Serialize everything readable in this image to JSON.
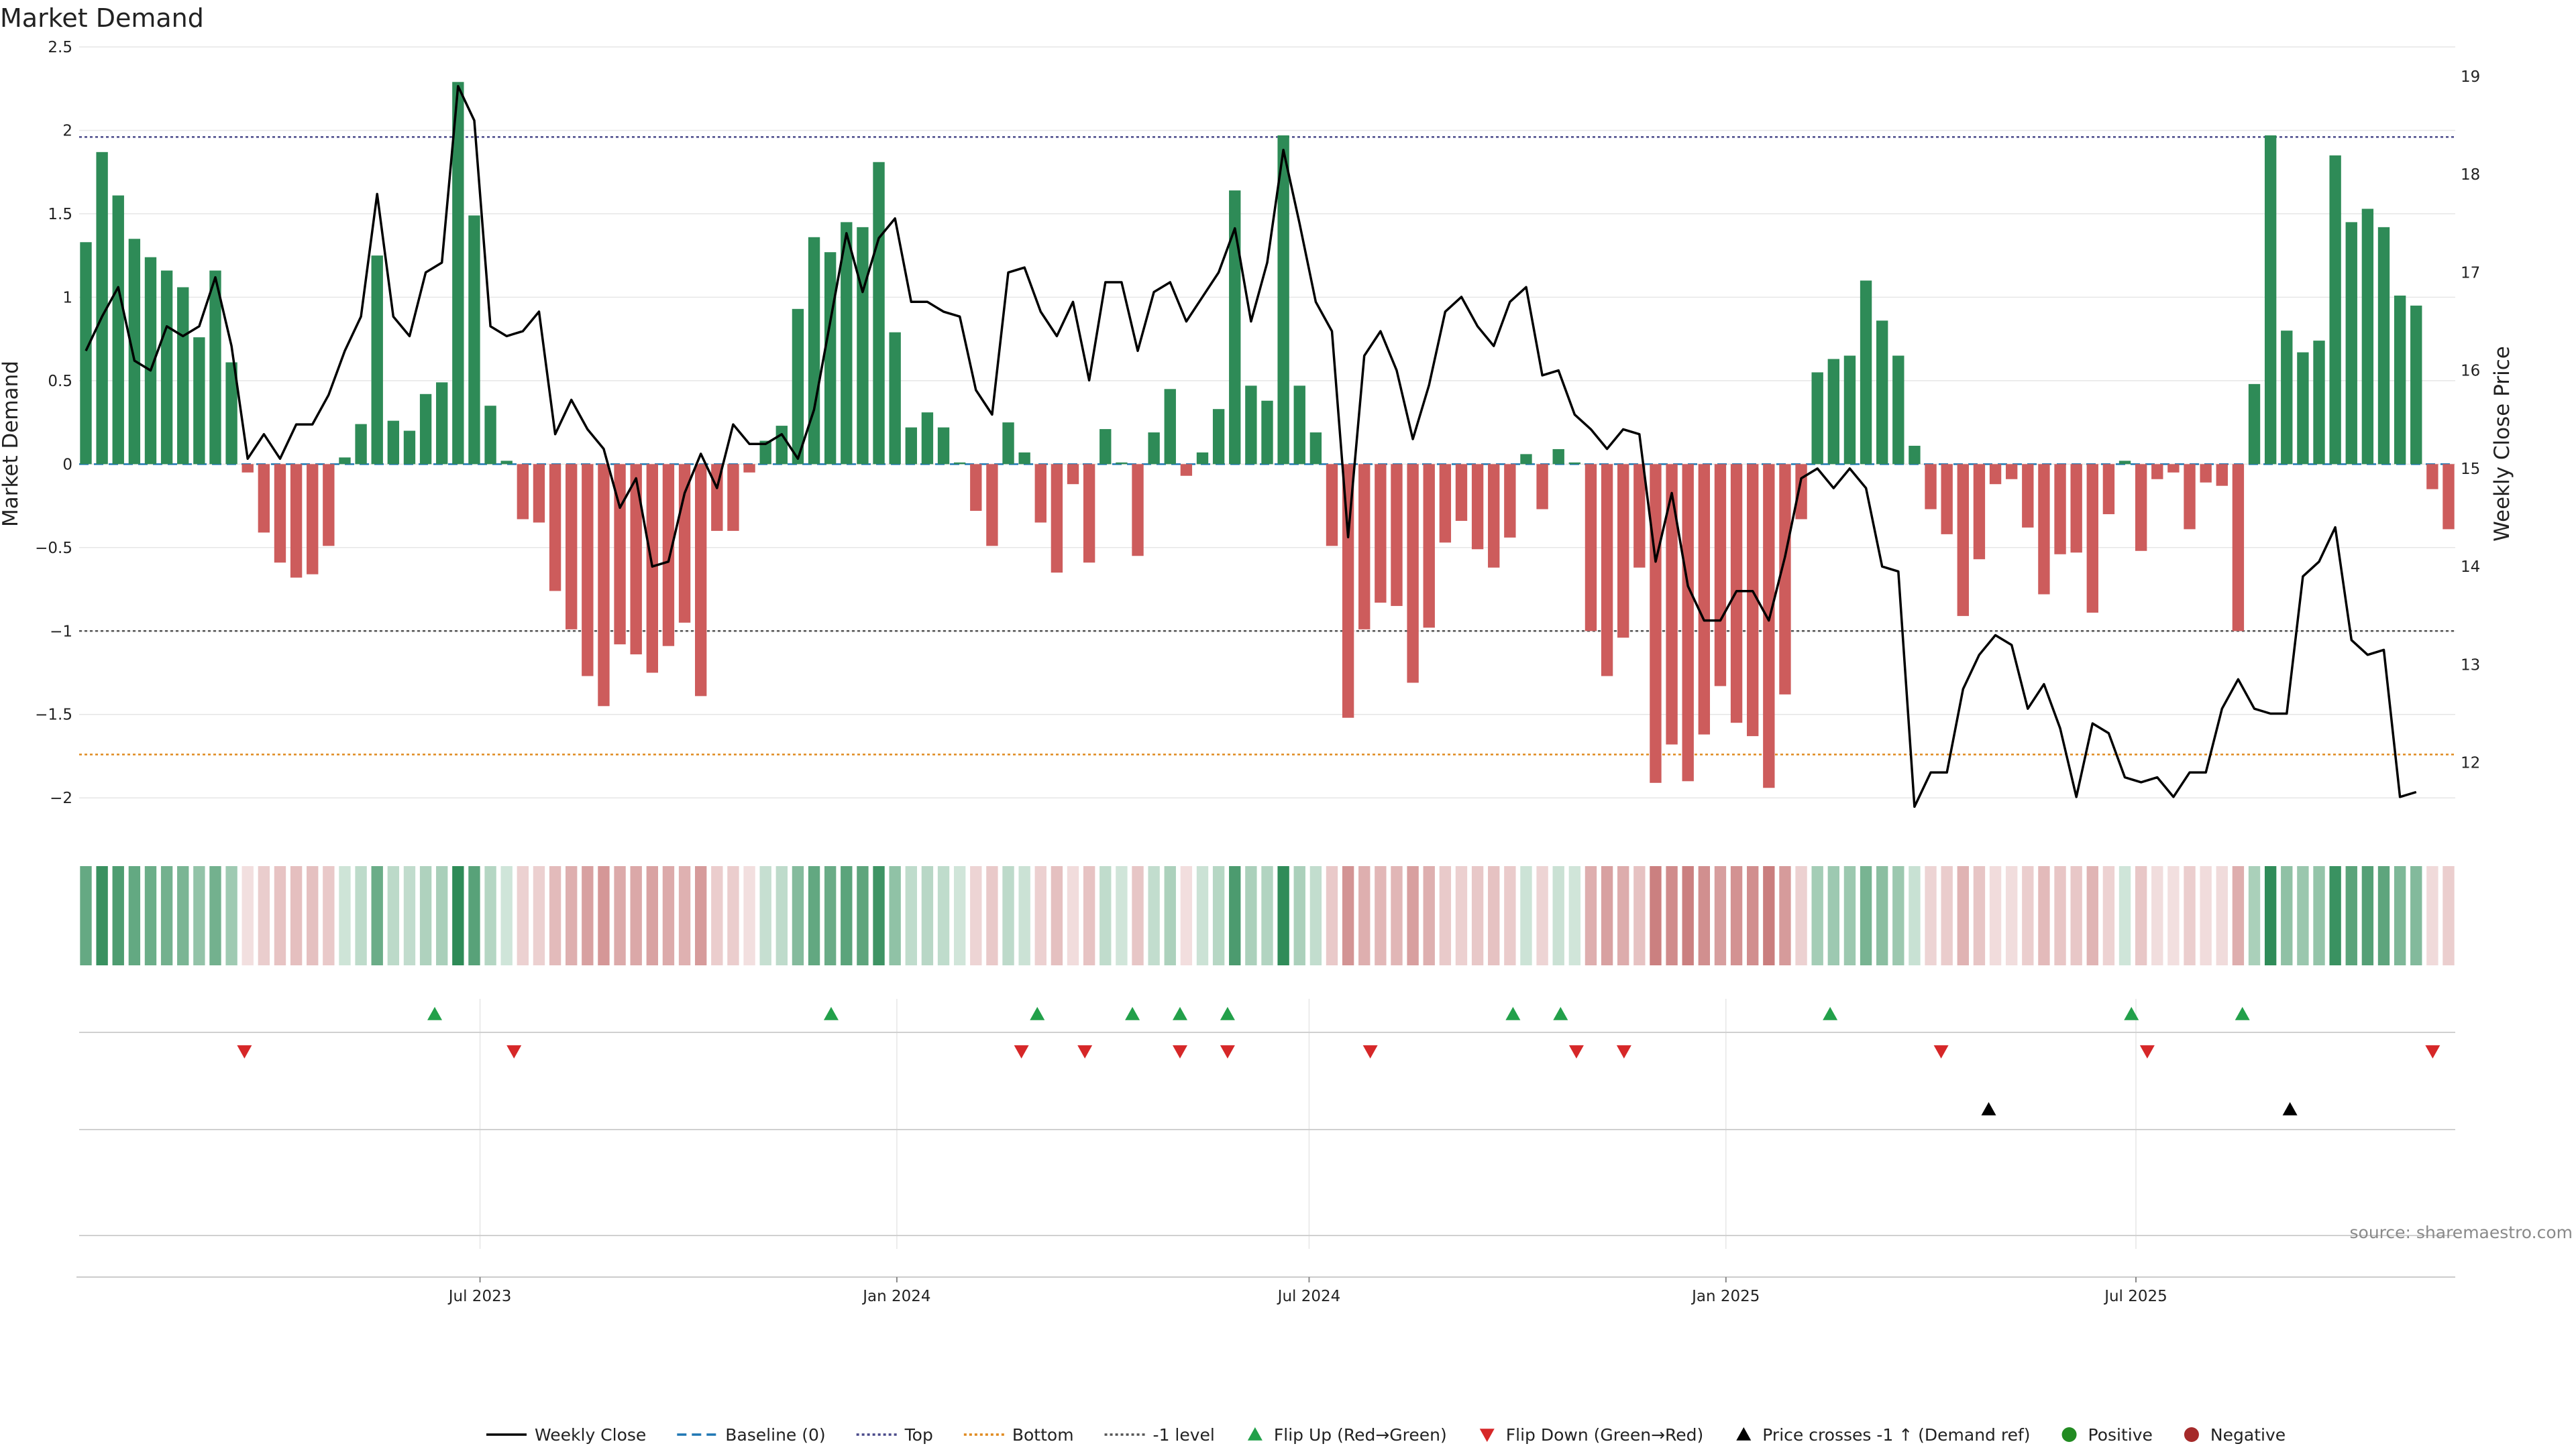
{
  "chart_data": {
    "type": "bar",
    "title": "Market Demand",
    "ylabel": "Market Demand",
    "y2label": "Weekly Close Price",
    "ylim": [
      -2.2,
      2.5
    ],
    "y2lim": [
      11.3,
      19.3
    ],
    "yticks": [
      2.5,
      2,
      1.5,
      1,
      0.5,
      0,
      -0.5,
      -1,
      -1.5,
      -2
    ],
    "ytick_labels": [
      "2.5",
      "2",
      "1.5",
      "1",
      "0.5",
      "0",
      "−0.5",
      "−1",
      "−1.5",
      "−2"
    ],
    "y2ticks": [
      19,
      18,
      17,
      16,
      15,
      14,
      13,
      12
    ],
    "y2tick_labels": [
      "19",
      "18",
      "17",
      "16",
      "15",
      "14",
      "13",
      "12"
    ],
    "x_start": "2023-01-08",
    "x_end": "2025-11-16",
    "xticks": [
      {
        "date": "2023-07-01",
        "label": "Jul 2023"
      },
      {
        "date": "2024-01-01",
        "label": "Jan 2024"
      },
      {
        "date": "2024-07-01",
        "label": "Jul 2024"
      },
      {
        "date": "2025-01-01",
        "label": "Jan 2025"
      },
      {
        "date": "2025-07-01",
        "label": "Jul 2025"
      }
    ],
    "grid": true,
    "reference_lines": {
      "top": 1.96,
      "bottom": -1.74,
      "minus_one": -1.0,
      "baseline": 0
    },
    "series": [
      {
        "name": "Weekly Close",
        "type": "line",
        "axis": "right",
        "color": "#000000",
        "values": [
          16.2,
          16.55,
          16.85,
          16.1,
          16.0,
          16.45,
          16.35,
          16.45,
          16.95,
          16.25,
          15.1,
          15.35,
          15.1,
          15.45,
          15.45,
          15.75,
          16.2,
          16.55,
          17.8,
          16.55,
          16.35,
          17.0,
          17.1,
          18.9,
          18.55,
          16.45,
          16.35,
          16.4,
          16.6,
          15.35,
          15.7,
          15.4,
          15.2,
          14.6,
          14.9,
          14.0,
          14.05,
          14.75,
          15.15,
          14.8,
          15.45,
          15.25,
          15.25,
          15.35,
          15.1,
          15.6,
          16.5,
          17.4,
          16.8,
          17.35,
          17.55,
          16.7,
          16.7,
          16.6,
          16.55,
          15.8,
          15.55,
          17.0,
          17.05,
          16.6,
          16.35,
          16.7,
          15.9,
          16.9,
          16.9,
          16.2,
          16.8,
          16.9,
          16.5,
          16.75,
          17.0,
          17.45,
          16.5,
          17.1,
          18.25,
          17.5,
          16.7,
          16.4,
          14.3,
          16.15,
          16.4,
          16.0,
          15.3,
          15.85,
          16.6,
          16.75,
          16.45,
          16.25,
          16.7,
          16.85,
          15.95,
          16.0,
          15.55,
          15.4,
          15.2,
          15.4,
          15.35,
          14.05,
          14.75,
          13.8,
          13.45,
          13.45,
          13.75,
          13.75,
          13.45,
          14.1,
          14.9,
          15.0,
          14.8,
          15.0,
          14.8,
          14.0,
          13.95,
          11.55,
          11.9,
          11.9,
          12.75,
          13.1,
          13.3,
          13.2,
          12.55,
          12.8,
          12.35,
          11.65,
          12.4,
          12.3,
          11.85,
          11.8,
          11.85,
          11.65,
          11.9,
          11.9,
          12.55,
          12.85,
          12.55,
          12.5,
          12.5,
          13.9,
          14.05,
          14.4,
          13.25,
          13.1,
          13.15,
          11.65,
          11.7
        ]
      },
      {
        "name": "Market Demand",
        "type": "bar",
        "axis": "left",
        "values": [
          1.33,
          1.87,
          1.61,
          1.35,
          1.24,
          1.16,
          1.06,
          0.76,
          1.16,
          0.61,
          -0.05,
          -0.41,
          -0.59,
          -0.68,
          -0.66,
          -0.49,
          0.04,
          0.24,
          1.25,
          0.26,
          0.2,
          0.42,
          0.49,
          2.29,
          1.49,
          0.35,
          0.02,
          -0.33,
          -0.35,
          -0.76,
          -0.99,
          -1.27,
          -1.45,
          -1.08,
          -1.14,
          -1.25,
          -1.09,
          -0.95,
          -1.39,
          -0.4,
          -0.4,
          -0.05,
          0.14,
          0.23,
          0.93,
          1.36,
          1.27,
          1.45,
          1.42,
          1.81,
          0.79,
          0.22,
          0.31,
          0.22,
          0.01,
          -0.28,
          -0.49,
          0.25,
          0.07,
          -0.35,
          -0.65,
          -0.12,
          -0.59,
          0.21,
          0.01,
          -0.55,
          0.19,
          0.45,
          -0.07,
          0.07,
          0.33,
          1.64,
          0.47,
          0.38,
          1.97,
          0.47,
          0.19,
          -0.49,
          -1.52,
          -0.99,
          -0.83,
          -0.85,
          -1.31,
          -0.98,
          -0.47,
          -0.34,
          -0.51,
          -0.62,
          -0.44,
          0.06,
          -0.27,
          0.09,
          0.01,
          -1.0,
          -1.27,
          -1.04,
          -0.62,
          -1.91,
          -1.68,
          -1.9,
          -1.62,
          -1.33,
          -1.55,
          -1.63,
          -1.94,
          -1.38,
          -0.33,
          0.55,
          0.63,
          0.65,
          1.1,
          0.86,
          0.65,
          0.11,
          -0.27,
          -0.42,
          -0.91,
          -0.57,
          -0.12,
          -0.09,
          -0.38,
          -0.78,
          -0.54,
          -0.53,
          -0.89,
          -0.3,
          0.02,
          -0.52,
          -0.09,
          -0.05,
          -0.39,
          -0.11,
          -0.13,
          -1.0,
          0.48,
          1.97,
          0.8,
          0.67,
          0.74,
          1.85,
          1.45,
          1.53,
          1.42,
          1.01,
          0.95,
          -0.15,
          -0.39
        ]
      }
    ],
    "colors": {
      "positive": "#2e8b57",
      "negative": "#cd5c5c",
      "heat_positive": "#2e8b57",
      "heat_negative": "#c97b7b",
      "flip_up": "#22a04a",
      "flip_down": "#d62728",
      "price_cross": "#000000",
      "top_line": "#4a4a8a",
      "bottom_line": "#e08a1e",
      "minus_one_line": "#555555",
      "baseline_line": "#1f77b4",
      "legend_positive": "#228b22",
      "legend_negative": "#a52a2a"
    },
    "events": {
      "flip_up_dates": [
        "2023-06-11",
        "2023-12-03",
        "2024-03-03",
        "2024-04-14",
        "2024-05-05",
        "2024-05-26",
        "2024-09-29",
        "2024-10-20",
        "2025-02-16",
        "2025-06-29",
        "2025-08-17"
      ],
      "flip_down_dates": [
        "2023-03-19",
        "2023-07-16",
        "2024-02-25",
        "2024-03-24",
        "2024-05-05",
        "2024-05-26",
        "2024-07-28",
        "2024-10-27",
        "2024-11-17",
        "2025-04-06",
        "2025-07-06",
        "2025-11-09"
      ],
      "price_cross_dates": [
        "2025-04-27",
        "2025-09-07"
      ]
    },
    "legend": [
      {
        "label": "Weekly Close",
        "marker": "line-solid",
        "color": "#000000"
      },
      {
        "label": "Baseline (0)",
        "marker": "line-dash",
        "color": "#1f77b4"
      },
      {
        "label": "Top",
        "marker": "line-dot",
        "color": "#4a4a8a"
      },
      {
        "label": "Bottom",
        "marker": "line-dot",
        "color": "#e08a1e"
      },
      {
        "label": "-1 level",
        "marker": "line-dot",
        "color": "#555555"
      },
      {
        "label": "Flip Up (Red→Green)",
        "marker": "triangle-up",
        "color": "#22a04a"
      },
      {
        "label": "Flip Down (Green→Red)",
        "marker": "triangle-down",
        "color": "#d62728"
      },
      {
        "label": "Price crosses -1 ↑ (Demand ref)",
        "marker": "triangle-up",
        "color": "#000000"
      },
      {
        "label": "Positive",
        "marker": "circle",
        "color": "#228b22"
      },
      {
        "label": "Negative",
        "marker": "circle",
        "color": "#a52a2a"
      }
    ],
    "legend_position": "bottom-center",
    "source": "source: sharemaestro.com"
  }
}
